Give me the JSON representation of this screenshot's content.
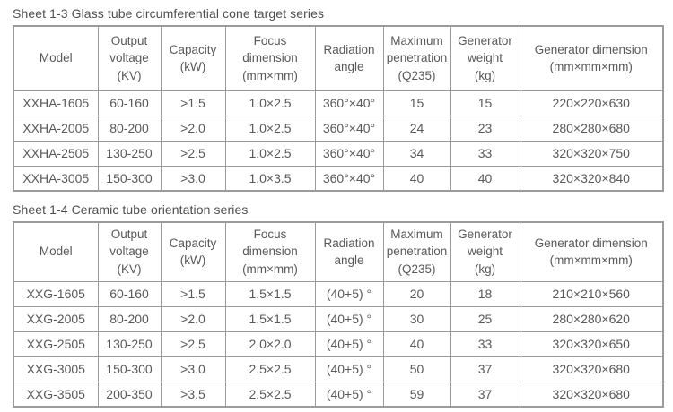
{
  "page": {
    "background": "#ffffff",
    "text_color": "#595959",
    "border_color": "#9b9b9b"
  },
  "tables": [
    {
      "caption": "Sheet 1-3 Glass tube circumferential cone target series",
      "headers": [
        "Model",
        "Output\nvoltage\n(KV)",
        "Capacity\n(kW)",
        "Focus\ndimension\n(mm×mm)",
        "Radiation\nangle",
        "Maximum\npenetration\n(Q235)",
        "Generator\nweight\n(kg)",
        "Generator dimension\n(mm×mm×mm)"
      ],
      "rows": [
        [
          "XXHA-1605",
          "60-160",
          ">1.5",
          "1.0×2.5",
          "360°×40°",
          "15",
          "15",
          "220×220×630"
        ],
        [
          "XXHA-2005",
          "80-200",
          ">2.0",
          "1.0×2.5",
          "360°×40°",
          "24",
          "23",
          "280×280×680"
        ],
        [
          "XXHA-2505",
          "130-250",
          ">2.5",
          "1.0×2.5",
          "360°×40°",
          "34",
          "33",
          "320×320×750"
        ],
        [
          "XXHA-3005",
          "150-300",
          ">3.0",
          "1.0×3.5",
          "360°×40°",
          "40",
          "40",
          "320×320×840"
        ]
      ]
    },
    {
      "caption": "Sheet 1-4 Ceramic tube orientation series",
      "headers": [
        "Model",
        "Output\nvoltage\n(KV)",
        "Capacity\n(kW)",
        "Focus\ndimension\n(mm×mm)",
        "Radiation\nangle",
        "Maximum\npenetration\n(Q235)",
        "Generator\nweight\n(kg)",
        "Generator dimension\n(mm×mm×mm)"
      ],
      "rows": [
        [
          "XXG-1605",
          "60-160",
          ">1.5",
          "1.5×1.5",
          "(40+5) °",
          "20",
          "18",
          "210×210×560"
        ],
        [
          "XXG-2005",
          "80-200",
          ">2.0",
          "1.5×1.5",
          "(40+5) °",
          "30",
          "25",
          "280×280×620"
        ],
        [
          "XXG-2505",
          "130-250",
          ">2.5",
          "2.0×2.0",
          "(40+5) °",
          "40",
          "33",
          "320×320×650"
        ],
        [
          "XXG-3005",
          "150-300",
          ">3.0",
          "2.5×2.5",
          "(40+5) °",
          "50",
          "37",
          "320×320×680"
        ],
        [
          "XXG-3505",
          "200-350",
          ">3.5",
          "2.5×2.5",
          "(40+5) °",
          "59",
          "37",
          "320×320×680"
        ]
      ]
    }
  ]
}
